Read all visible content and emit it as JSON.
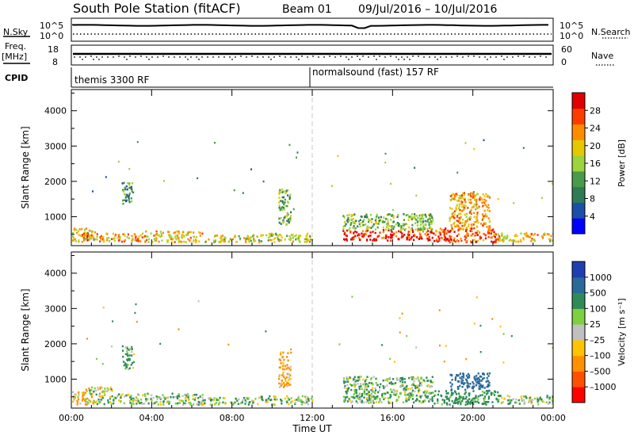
{
  "header": {
    "station": "South Pole Station (fitACF)",
    "beam": "Beam 01",
    "date_range": "09/Jul/2016 – 10/Jul/2016"
  },
  "aux_panels": {
    "nsky_label": "N.Sky",
    "nsearch_label": "N.Search",
    "nsky_ticks": [
      "10^5",
      "10^0"
    ],
    "nsearch_ticks": [
      "10^5",
      "10^0"
    ],
    "freq_label": "Freq.",
    "freq_unit": "[MHz]",
    "freq_ticks": [
      "18",
      "8"
    ],
    "nave_label": "Nave",
    "nave_ticks": [
      "60",
      "0"
    ],
    "cpid_label": "CPID",
    "cpid_segments": [
      {
        "label": "themis 3300 RF",
        "start_hour": 0,
        "end_hour": 12
      },
      {
        "label": "normalsound (fast) 157 RF",
        "start_hour": 12,
        "end_hour": 24
      }
    ]
  },
  "colors": {
    "frame": "#000000",
    "divider": "#c8c8c8",
    "ground_scatter": "#c0c0c0"
  },
  "chart_data": [
    {
      "type": "heatmap",
      "name": "power",
      "ylabel": "Slant Range [km]",
      "xlabel": "",
      "xlim": [
        0,
        24
      ],
      "ylim": [
        180,
        4600
      ],
      "x_ticks": [
        "00:00",
        "04:00",
        "08:00",
        "12:00",
        "16:00",
        "20:00",
        "00:00"
      ],
      "y_ticks": [
        1000,
        2000,
        3000,
        4000
      ],
      "colorbar": {
        "label": "Power [dB]",
        "ticks": [
          "28",
          "24",
          "20",
          "16",
          "12",
          "8",
          "4"
        ],
        "tick_values": [
          28,
          24,
          20,
          16,
          12,
          8,
          4
        ],
        "range": [
          0,
          32
        ],
        "colors": [
          "#0000ff",
          "#1c4fa8",
          "#2e7b56",
          "#4a9a4a",
          "#9bd43c",
          "#e6c800",
          "#ff8c00",
          "#ff3c00",
          "#e00000"
        ]
      },
      "scatter_regions": [
        {
          "t0": 0.0,
          "t1": 1.2,
          "r0": 300,
          "r1": 700,
          "level": 18
        },
        {
          "t0": 0.5,
          "t1": 1.1,
          "r0": 350,
          "r1": 550,
          "level": 27
        },
        {
          "t0": 1.2,
          "t1": 3.6,
          "r0": 320,
          "r1": 560,
          "level": 22
        },
        {
          "t0": 2.5,
          "t1": 3.0,
          "r0": 1300,
          "r1": 2000,
          "level": 10
        },
        {
          "t0": 3.6,
          "t1": 6.5,
          "r0": 300,
          "r1": 620,
          "level": 20
        },
        {
          "t0": 6.5,
          "t1": 9.0,
          "r0": 300,
          "r1": 500,
          "level": 19
        },
        {
          "t0": 10.3,
          "t1": 10.9,
          "r0": 800,
          "r1": 1800,
          "level": 14
        },
        {
          "t0": 9.0,
          "t1": 12.0,
          "r0": 300,
          "r1": 550,
          "level": 17
        },
        {
          "t0": 13.5,
          "t1": 18.0,
          "r0": 350,
          "r1": 650,
          "level": 29
        },
        {
          "t0": 13.5,
          "t1": 18.0,
          "r0": 650,
          "r1": 1100,
          "level": 14
        },
        {
          "t0": 18.0,
          "t1": 21.2,
          "r0": 300,
          "r1": 700,
          "level": 26
        },
        {
          "t0": 18.8,
          "t1": 20.8,
          "r0": 700,
          "r1": 1700,
          "level": 22
        },
        {
          "t0": 21.2,
          "t1": 24.0,
          "r0": 320,
          "r1": 560,
          "level": 20
        }
      ]
    },
    {
      "type": "heatmap",
      "name": "velocity",
      "ylabel": "Slant Range [km]",
      "xlabel": "Time UT",
      "xlim": [
        0,
        24
      ],
      "ylim": [
        180,
        4600
      ],
      "x_ticks": [
        "00:00",
        "04:00",
        "08:00",
        "12:00",
        "16:00",
        "20:00",
        "00:00"
      ],
      "y_ticks": [
        1000,
        2000,
        3000,
        4000
      ],
      "colorbar": {
        "label": "Velocity [m s⁻¹]",
        "ticks": [
          "1000",
          "500",
          "100",
          "25",
          "–25",
          "–100",
          "–500",
          "–1000"
        ],
        "tick_values": [
          1000,
          500,
          100,
          25,
          -25,
          -100,
          -500,
          -1000
        ],
        "colors": [
          "#ff0000",
          "#ff5000",
          "#ff9000",
          "#ffc400",
          "#c0c0c0",
          "#7fd040",
          "#2e8b57",
          "#2a6a9a",
          "#1f3fb0"
        ]
      },
      "scatter_regions": [
        {
          "t0": 0.0,
          "t1": 1.2,
          "r0": 300,
          "r1": 700,
          "level": -80
        },
        {
          "t0": 0.5,
          "t1": 2.0,
          "r0": 600,
          "r1": 800,
          "level": 0
        },
        {
          "t0": 1.2,
          "t1": 3.6,
          "r0": 320,
          "r1": 600,
          "level": 60
        },
        {
          "t0": 2.5,
          "t1": 3.0,
          "r0": 1300,
          "r1": 2000,
          "level": 150
        },
        {
          "t0": 3.6,
          "t1": 6.5,
          "r0": 300,
          "r1": 620,
          "level": 80
        },
        {
          "t0": 6.5,
          "t1": 9.0,
          "r0": 300,
          "r1": 500,
          "level": 60
        },
        {
          "t0": 10.3,
          "t1": 10.9,
          "r0": 800,
          "r1": 1800,
          "level": -150
        },
        {
          "t0": 9.0,
          "t1": 12.0,
          "r0": 300,
          "r1": 550,
          "level": 50
        },
        {
          "t0": 13.5,
          "t1": 18.0,
          "r0": 350,
          "r1": 1100,
          "level": 100
        },
        {
          "t0": 18.0,
          "t1": 21.2,
          "r0": 300,
          "r1": 700,
          "level": 200
        },
        {
          "t0": 18.8,
          "t1": 20.8,
          "r0": 700,
          "r1": 1200,
          "level": 800
        },
        {
          "t0": 21.2,
          "t1": 24.0,
          "r0": 320,
          "r1": 560,
          "level": 90
        }
      ]
    }
  ]
}
